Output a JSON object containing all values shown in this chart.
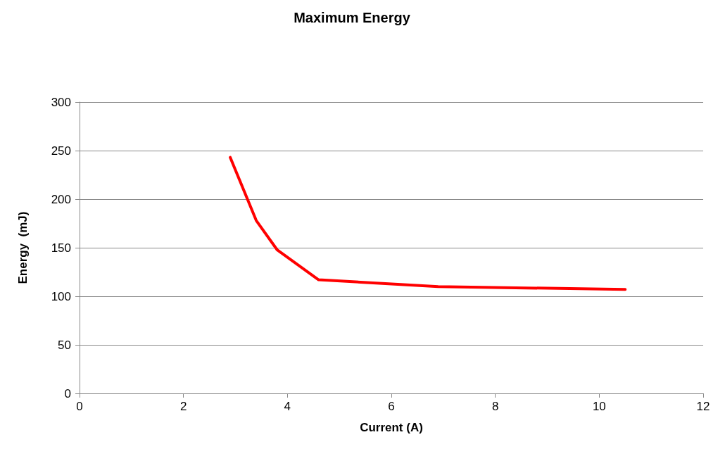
{
  "chart_data": {
    "type": "line",
    "title": "Maximum Energy",
    "xlabel": "Current (A)",
    "ylabel": "Energy  (mJ)",
    "x": [
      2.9,
      3.4,
      3.8,
      4.6,
      6.9,
      10.5
    ],
    "series": [
      {
        "color": "#ff0000",
        "values": [
          243,
          178,
          148,
          117,
          110,
          107
        ]
      }
    ],
    "xlim": [
      0,
      12
    ],
    "xticks": [
      0,
      2,
      4,
      6,
      8,
      10,
      12
    ],
    "ylim": [
      0,
      300
    ],
    "yticks": [
      0,
      50,
      100,
      150,
      200,
      250,
      300
    ],
    "grid": "y",
    "marker": "none",
    "line_style": "solid"
  }
}
